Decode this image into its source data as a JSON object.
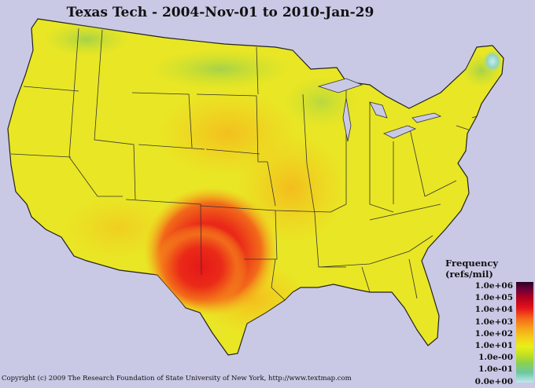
{
  "title": "Texas Tech - 2004-Nov-01 to 2010-Jan-29",
  "legend": {
    "title": "Frequency (refs/mil)",
    "labels": [
      "1.0e+06",
      "1.0e+05",
      "1.0e+04",
      "1.0e+03",
      "1.0e+02",
      "1.0e+01",
      "1.0e-00",
      "1.0e-01",
      "0.0e+00"
    ]
  },
  "copyright": "Copyright (c) 2009 The Research Foundation of State University of New York, http://www.textmap.com",
  "colors": {
    "background": "#c9c9e6",
    "base_map": "#e9e625",
    "hotspot": "#e31a1a",
    "border": "#333333"
  }
}
